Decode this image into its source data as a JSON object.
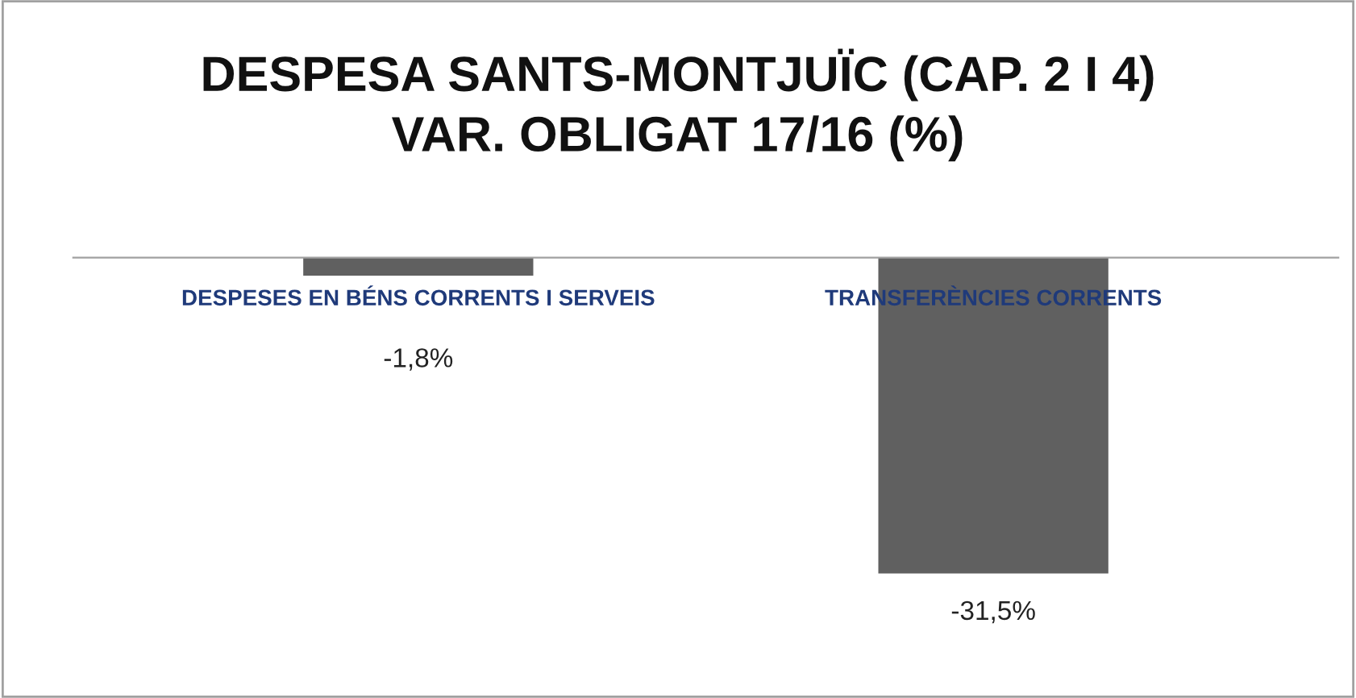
{
  "chart_data": {
    "type": "bar",
    "title": "DESPESA SANTS-MONTJUÏC (CAP. 2 I 4)\nVAR. OBLIGAT 17/16 (%)",
    "categories": [
      "DESPESES EN BÉNS CORRENTS I SERVEIS",
      "TRANSFERÈNCIES CORRENTS"
    ],
    "values": [
      -1.8,
      -31.5
    ],
    "value_labels": [
      "-1,8%",
      "-31,5%"
    ],
    "color": "#606060",
    "legend": false
  }
}
